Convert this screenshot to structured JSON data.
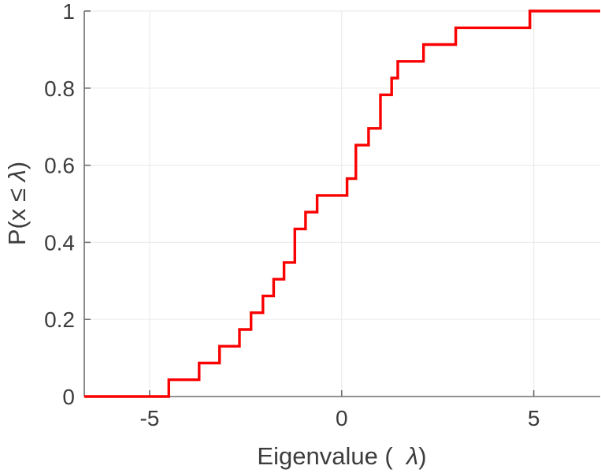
{
  "chart_data": {
    "type": "line",
    "subtype": "empirical-cdf-step",
    "title": "",
    "xlabel_prefix": "Eigenvalue (  ",
    "xlabel_symbol": "λ",
    "xlabel_suffix": ")",
    "ylabel_prefix": "P(x ≤ ",
    "ylabel_symbol": "λ",
    "ylabel_suffix": ")",
    "series": [
      {
        "name": "eigenvalue-ecdf",
        "color": "#fa0000",
        "line_width": 3.4,
        "eigenvalues": [
          -4.5,
          -3.71,
          -3.18,
          -2.66,
          -2.36,
          -2.05,
          -1.77,
          -1.5,
          -1.22,
          -1.22,
          -0.94,
          -0.64,
          0.14,
          0.37,
          0.37,
          0.7,
          1.01,
          1.01,
          1.3,
          1.46,
          2.13,
          2.97,
          4.9
        ]
      }
    ],
    "n_points": 23,
    "step_height": 0.0435,
    "xlim": [
      -6.7,
      6.73
    ],
    "ylim": [
      0,
      1
    ],
    "xticks": [
      -5,
      0,
      5
    ],
    "yticks": [
      0,
      0.2,
      0.4,
      0.6,
      0.8,
      1
    ],
    "grid": true,
    "legend": "none",
    "colors": {
      "line": "#fa0000",
      "grid": "#ececec",
      "axis": "#6e6e6e",
      "tick_text": "#3d3d3d",
      "background": "#ffffff"
    }
  }
}
